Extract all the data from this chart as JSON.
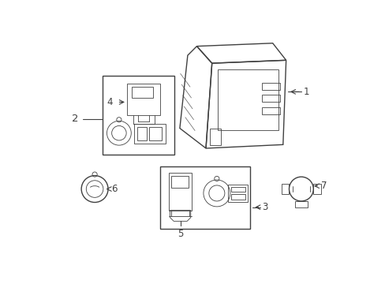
{
  "bg_color": "#ffffff",
  "line_color": "#404040",
  "lw": 1.0,
  "tlw": 0.6,
  "fs": 8.5,
  "fig_w": 4.89,
  "fig_h": 3.6,
  "dpi": 100
}
